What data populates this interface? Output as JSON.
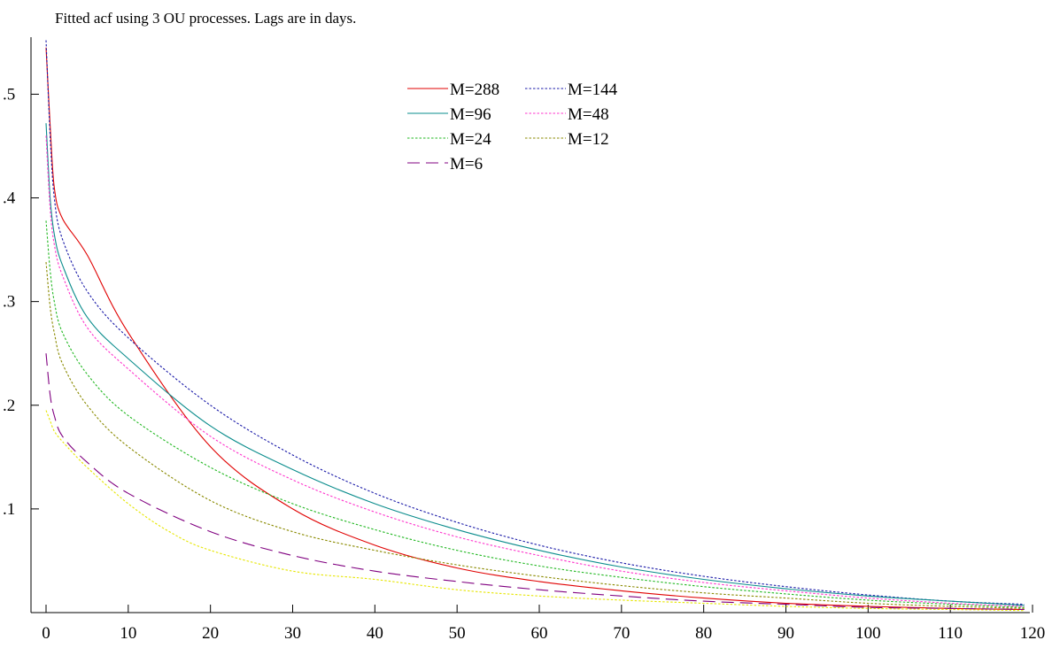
{
  "chart_data": {
    "type": "line",
    "title": "Fitted acf using 3 OU processes. Lags are in days.",
    "xlabel": "",
    "ylabel": "",
    "xlim": [
      0,
      120
    ],
    "ylim": [
      0,
      0.555
    ],
    "x_ticks": [
      0,
      10,
      20,
      30,
      40,
      50,
      60,
      70,
      80,
      90,
      100,
      110,
      120
    ],
    "x_tick_labels": [
      "0",
      "10",
      "20",
      "30",
      "40",
      "50",
      "60",
      "70",
      "80",
      "90",
      "100",
      "110",
      "120"
    ],
    "y_ticks": [
      0.1,
      0.2,
      0.3,
      0.4,
      0.5
    ],
    "y_tick_labels": [
      ".1",
      ".2",
      ".3",
      ".4",
      ".5"
    ],
    "grid": false,
    "legend_position": "top-center",
    "series": [
      {
        "name": "M=288",
        "color": "#e00000",
        "dash": "solid",
        "x": [
          0,
          0.5,
          1,
          2,
          5,
          10,
          20,
          30,
          40,
          50,
          60,
          70,
          80,
          90,
          100,
          110,
          119
        ],
        "y": [
          0.545,
          0.47,
          0.41,
          0.38,
          0.345,
          0.27,
          0.16,
          0.1,
          0.065,
          0.043,
          0.03,
          0.021,
          0.014,
          0.009,
          0.006,
          0.004,
          0.003
        ]
      },
      {
        "name": "M=144",
        "color": "#1a1aa8",
        "dash": "dotted",
        "x": [
          0,
          0.5,
          1,
          2,
          5,
          10,
          20,
          30,
          40,
          50,
          60,
          70,
          80,
          90,
          100,
          110,
          119
        ],
        "y": [
          0.552,
          0.46,
          0.4,
          0.36,
          0.31,
          0.265,
          0.2,
          0.152,
          0.115,
          0.087,
          0.065,
          0.048,
          0.035,
          0.025,
          0.017,
          0.011,
          0.008
        ]
      },
      {
        "name": "M=96",
        "color": "#0a8c8c",
        "dash": "solid",
        "x": [
          0,
          0.5,
          1,
          2,
          5,
          10,
          20,
          30,
          40,
          50,
          60,
          70,
          80,
          90,
          100,
          110,
          119
        ],
        "y": [
          0.472,
          0.4,
          0.365,
          0.335,
          0.285,
          0.245,
          0.18,
          0.138,
          0.105,
          0.08,
          0.06,
          0.044,
          0.032,
          0.023,
          0.016,
          0.011,
          0.007
        ]
      },
      {
        "name": "M=48",
        "color": "#ff33cc",
        "dash": "dotted",
        "x": [
          0,
          0.5,
          1,
          2,
          5,
          10,
          20,
          30,
          40,
          50,
          60,
          70,
          80,
          90,
          100,
          110,
          119
        ],
        "y": [
          0.46,
          0.39,
          0.355,
          0.325,
          0.275,
          0.235,
          0.17,
          0.128,
          0.097,
          0.073,
          0.055,
          0.04,
          0.029,
          0.021,
          0.014,
          0.009,
          0.006
        ]
      },
      {
        "name": "M=24",
        "color": "#22b822",
        "dash": "dotted",
        "x": [
          0,
          0.5,
          1,
          2,
          5,
          10,
          20,
          30,
          40,
          50,
          60,
          70,
          80,
          90,
          100,
          110,
          119
        ],
        "y": [
          0.378,
          0.33,
          0.3,
          0.27,
          0.23,
          0.19,
          0.14,
          0.105,
          0.08,
          0.06,
          0.045,
          0.034,
          0.025,
          0.018,
          0.012,
          0.008,
          0.005
        ]
      },
      {
        "name": "M=12",
        "color": "#8a8a00",
        "dash": "dotted",
        "x": [
          0,
          0.5,
          1,
          2,
          5,
          10,
          20,
          30,
          40,
          50,
          60,
          70,
          80,
          90,
          100,
          110,
          119
        ],
        "y": [
          0.338,
          0.295,
          0.27,
          0.24,
          0.2,
          0.16,
          0.108,
          0.078,
          0.06,
          0.046,
          0.035,
          0.026,
          0.019,
          0.014,
          0.009,
          0.006,
          0.004
        ]
      },
      {
        "name": "M=6",
        "color": "#800080",
        "dash": "dashed",
        "x": [
          0,
          0.5,
          1,
          2,
          5,
          10,
          20,
          30,
          40,
          50,
          60,
          70,
          80,
          90,
          100,
          110,
          119
        ],
        "y": [
          0.25,
          0.21,
          0.19,
          0.17,
          0.145,
          0.115,
          0.078,
          0.055,
          0.04,
          0.03,
          0.022,
          0.016,
          0.011,
          0.008,
          0.005,
          0.004,
          0.003
        ]
      },
      {
        "name": "",
        "color": "#e6e600",
        "dash": "dotted",
        "x": [
          0,
          0.5,
          1,
          2,
          5,
          10,
          15,
          20,
          30,
          40,
          50,
          60,
          70,
          80,
          90,
          100,
          110,
          119
        ],
        "y": [
          0.195,
          0.185,
          0.175,
          0.165,
          0.14,
          0.105,
          0.078,
          0.06,
          0.04,
          0.032,
          0.022,
          0.016,
          0.012,
          0.009,
          0.006,
          0.004,
          0.003,
          0.002
        ]
      }
    ]
  }
}
